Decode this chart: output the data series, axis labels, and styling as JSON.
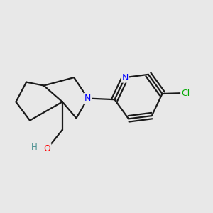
{
  "background_color": "#e8e8e8",
  "bond_color": "#1a1a1a",
  "atom_colors": {
    "O": "#ff0000",
    "N": "#0000ff",
    "Cl": "#00aa00",
    "H_O": "#4a9090",
    "C": "#1a1a1a"
  },
  "lw": 1.6,
  "fontsize": 9
}
